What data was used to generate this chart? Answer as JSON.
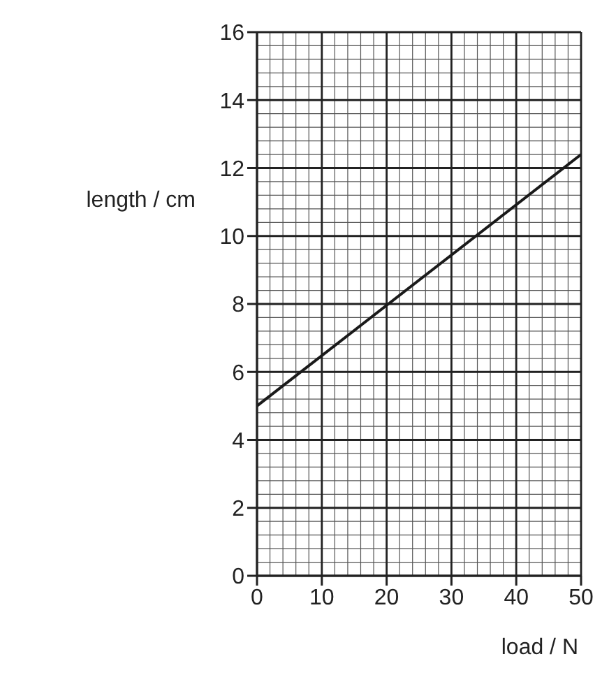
{
  "chart_data": {
    "type": "line",
    "xlabel": "load / N",
    "ylabel": "length / cm",
    "x": [
      0,
      50
    ],
    "values": [
      5.0,
      12.4
    ],
    "color": "#1a1a1a",
    "xlim": [
      0,
      50
    ],
    "ylim": [
      0,
      16
    ],
    "xticks": [
      0,
      10,
      20,
      30,
      40,
      50
    ],
    "yticks": [
      0,
      2,
      4,
      6,
      8,
      10,
      12,
      14,
      16
    ],
    "grid": true,
    "marker": "none",
    "line_style": "solid"
  }
}
